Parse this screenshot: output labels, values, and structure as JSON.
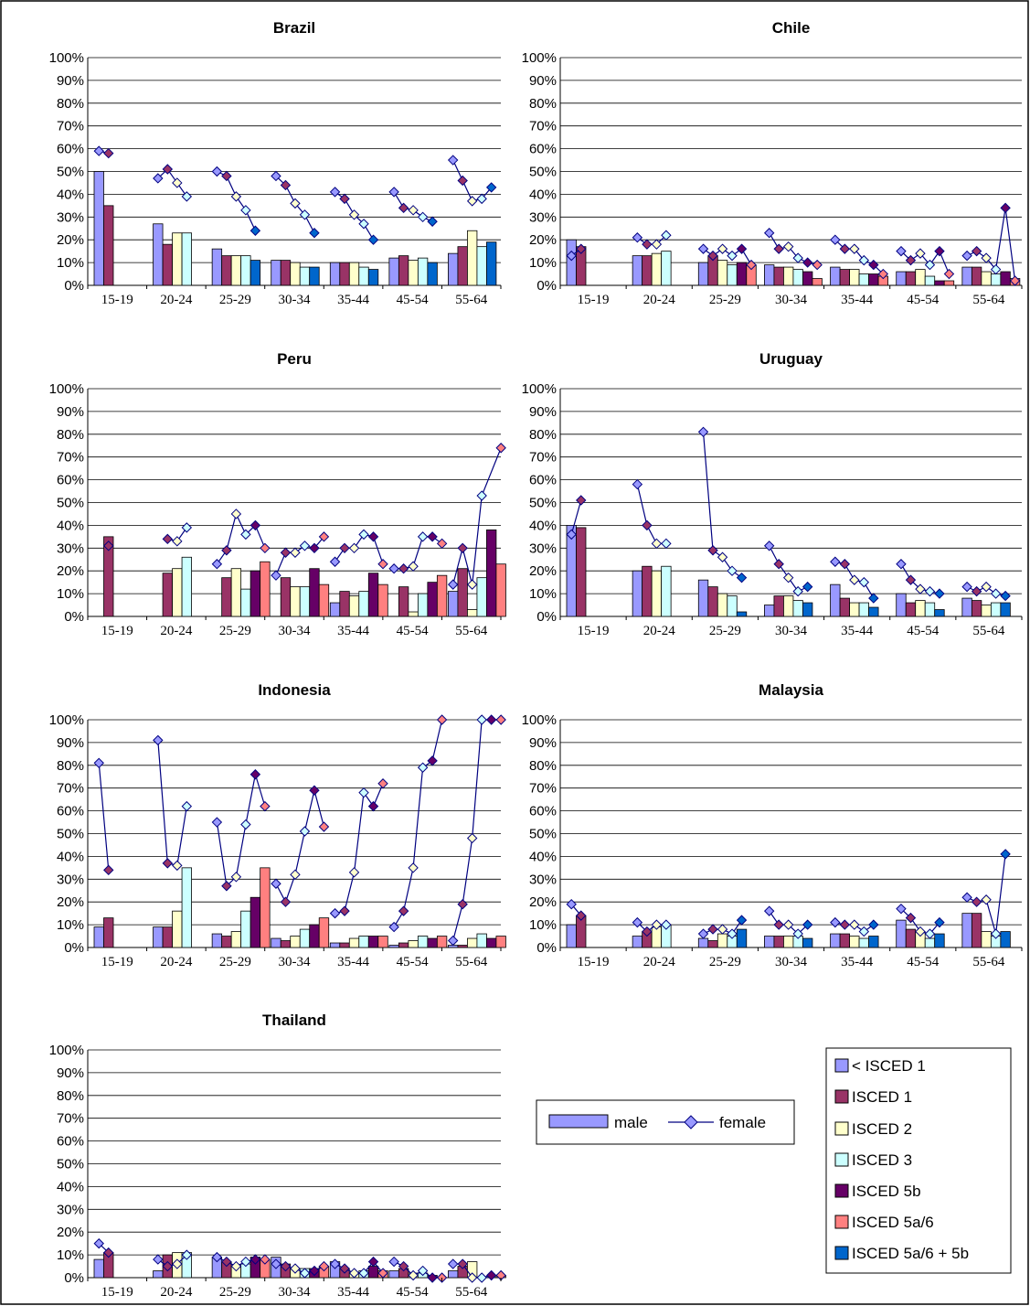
{
  "chart_data": {
    "type": "bar",
    "categories": [
      "15-19",
      "20-24",
      "25-29",
      "30-34",
      "35-44",
      "45-54",
      "55-64"
    ],
    "ylim": [
      0,
      100
    ],
    "yticks": [
      "0%",
      "10%",
      "20%",
      "30%",
      "40%",
      "50%",
      "60%",
      "70%",
      "80%",
      "90%",
      "100%"
    ],
    "grid": true,
    "marker_legend": {
      "male": "male",
      "female": "female"
    },
    "education_levels": [
      "< ISCED 1",
      "ISCED 1",
      "ISCED 2",
      "ISCED 3",
      "ISCED 5b",
      "ISCED 5a/6",
      "ISCED 5a/6 + 5b"
    ],
    "colors": {
      "< ISCED 1": "#9999ff",
      "ISCED 1": "#993366",
      "ISCED 2": "#ffffcc",
      "ISCED 3": "#ccffff",
      "ISCED 5b": "#660066",
      "ISCED 5a/6": "#ff8080",
      "ISCED 5a/6 + 5b": "#0066cc"
    },
    "panels": [
      {
        "title": "Brazil",
        "levels": [
          "< ISCED 1",
          "ISCED 1",
          "ISCED 2",
          "ISCED 3",
          "ISCED 5a/6 + 5b"
        ],
        "male": [
          [
            50,
            35
          ],
          [
            27,
            18,
            23,
            23
          ],
          [
            16,
            13,
            13,
            13,
            11
          ],
          [
            11,
            11,
            10,
            8,
            8
          ],
          [
            10,
            10,
            10,
            8,
            7
          ],
          [
            12,
            13,
            11,
            12,
            10
          ],
          [
            14,
            17,
            24,
            17,
            19
          ]
        ],
        "female": [
          [
            59,
            58
          ],
          [
            47,
            51,
            45,
            39
          ],
          [
            50,
            48,
            39,
            33,
            24
          ],
          [
            48,
            44,
            36,
            31,
            23
          ],
          [
            41,
            38,
            31,
            27,
            20
          ],
          [
            41,
            34,
            33,
            30,
            28
          ],
          [
            55,
            46,
            37,
            38,
            43
          ]
        ]
      },
      {
        "title": "Chile",
        "levels": [
          "< ISCED 1",
          "ISCED 1",
          "ISCED 2",
          "ISCED 3",
          "ISCED 5b",
          "ISCED 5a/6"
        ],
        "male": [
          [
            20,
            17
          ],
          [
            13,
            13,
            14,
            15
          ],
          [
            10,
            13,
            11,
            9,
            10,
            9
          ],
          [
            9,
            8,
            8,
            7,
            6,
            3
          ],
          [
            8,
            7,
            7,
            5,
            5,
            4
          ],
          [
            6,
            6,
            7,
            4,
            2,
            2
          ],
          [
            8,
            8,
            6,
            5,
            6,
            3
          ]
        ],
        "female": [
          [
            13,
            16
          ],
          [
            21,
            18,
            18,
            22
          ],
          [
            16,
            13,
            16,
            13,
            16,
            9
          ],
          [
            23,
            16,
            17,
            12,
            10,
            9
          ],
          [
            20,
            16,
            16,
            11,
            9,
            5
          ],
          [
            15,
            11,
            14,
            9,
            15,
            5
          ],
          [
            13,
            15,
            12,
            7,
            34,
            2
          ]
        ]
      },
      {
        "title": "Peru",
        "levels": [
          "< ISCED 1",
          "ISCED 1",
          "ISCED 2",
          "ISCED 3",
          "ISCED 5b",
          "ISCED 5a/6"
        ],
        "male": [
          [
            null,
            35
          ],
          [
            null,
            19,
            21,
            26
          ],
          [
            null,
            17,
            21,
            12,
            20,
            24
          ],
          [
            null,
            17,
            13,
            13,
            21,
            14
          ],
          [
            6,
            11,
            9,
            11,
            19,
            14
          ],
          [
            null,
            13,
            2,
            10,
            15,
            18
          ],
          [
            11,
            21,
            3,
            17,
            38,
            23
          ]
        ],
        "female": [
          [
            null,
            31
          ],
          [
            null,
            34,
            33,
            39
          ],
          [
            23,
            29,
            45,
            36,
            40,
            30
          ],
          [
            18,
            28,
            28,
            31,
            30,
            35
          ],
          [
            24,
            30,
            30,
            36,
            35,
            23
          ],
          [
            21,
            21,
            22,
            35,
            35,
            32
          ],
          [
            14,
            30,
            14,
            53,
            null,
            74
          ]
        ]
      },
      {
        "title": "Uruguay",
        "levels": [
          "< ISCED 1",
          "ISCED 1",
          "ISCED 2",
          "ISCED 3",
          "ISCED 5a/6 + 5b"
        ],
        "male": [
          [
            40,
            39
          ],
          [
            20,
            22,
            20,
            22
          ],
          [
            16,
            13,
            10,
            9,
            2
          ],
          [
            5,
            9,
            9,
            7,
            6
          ],
          [
            14,
            8,
            6,
            6,
            4
          ],
          [
            10,
            6,
            7,
            6,
            3
          ],
          [
            8,
            7,
            5,
            6,
            6
          ]
        ],
        "female": [
          [
            36,
            51
          ],
          [
            58,
            40,
            32,
            32
          ],
          [
            81,
            29,
            26,
            20,
            17
          ],
          [
            31,
            23,
            17,
            11,
            13
          ],
          [
            24,
            23,
            16,
            15,
            8
          ],
          [
            23,
            16,
            12,
            11,
            10
          ],
          [
            13,
            11,
            13,
            10,
            9
          ]
        ]
      },
      {
        "title": "Indonesia",
        "levels": [
          "< ISCED 1",
          "ISCED 1",
          "ISCED 2",
          "ISCED 3",
          "ISCED 5b",
          "ISCED 5a/6"
        ],
        "male": [
          [
            9,
            13
          ],
          [
            9,
            9,
            16,
            35
          ],
          [
            6,
            5,
            7,
            16,
            22,
            35
          ],
          [
            4,
            3,
            5,
            8,
            10,
            13
          ],
          [
            2,
            2,
            4,
            5,
            5,
            5
          ],
          [
            1,
            2,
            3,
            5,
            4,
            5
          ],
          [
            1,
            1,
            4,
            6,
            4,
            5
          ]
        ],
        "female": [
          [
            81,
            34
          ],
          [
            91,
            37,
            36,
            62
          ],
          [
            55,
            27,
            31,
            54,
            76,
            62
          ],
          [
            28,
            20,
            32,
            51,
            69,
            53
          ],
          [
            15,
            16,
            33,
            68,
            62,
            72
          ],
          [
            9,
            16,
            35,
            79,
            82,
            100
          ],
          [
            3,
            19,
            48,
            100,
            100,
            100
          ]
        ]
      },
      {
        "title": "Malaysia",
        "levels": [
          "< ISCED 1",
          "ISCED 1",
          "ISCED 2",
          "ISCED 3",
          "ISCED 5a/6 + 5b"
        ],
        "male": [
          [
            10,
            14
          ],
          [
            5,
            7,
            9,
            10
          ],
          [
            4,
            3,
            6,
            5,
            8
          ],
          [
            5,
            5,
            5,
            5,
            4
          ],
          [
            6,
            6,
            5,
            4,
            5
          ],
          [
            12,
            8,
            7,
            4,
            6
          ],
          [
            15,
            15,
            7,
            5,
            7
          ]
        ],
        "female": [
          [
            19,
            14
          ],
          [
            11,
            7,
            10,
            10
          ],
          [
            6,
            8,
            8,
            6,
            12
          ],
          [
            16,
            10,
            10,
            6,
            10
          ],
          [
            11,
            10,
            10,
            7,
            10
          ],
          [
            17,
            13,
            7,
            6,
            11
          ],
          [
            22,
            20,
            21,
            6,
            41
          ]
        ]
      },
      {
        "title": "Thailand",
        "levels": [
          "< ISCED 1",
          "ISCED 1",
          "ISCED 2",
          "ISCED 3",
          "ISCED 5b",
          "ISCED 5a/6"
        ],
        "male": [
          [
            8,
            11
          ],
          [
            3,
            10,
            11,
            11
          ],
          [
            9,
            7,
            5,
            6,
            9,
            8
          ],
          [
            9,
            6,
            4,
            4,
            4,
            5
          ],
          [
            7,
            4,
            2,
            3,
            5,
            3
          ],
          [
            3,
            4,
            2,
            2,
            1,
            0
          ],
          [
            3,
            5,
            7,
            0,
            0,
            1
          ]
        ],
        "female": [
          [
            15,
            11
          ],
          [
            8,
            5,
            6,
            10
          ],
          [
            9,
            7,
            5,
            7,
            8,
            8
          ],
          [
            6,
            5,
            4,
            2,
            3,
            5
          ],
          [
            6,
            4,
            2,
            2,
            7,
            2
          ],
          [
            7,
            5,
            1,
            3,
            0,
            0
          ],
          [
            6,
            6,
            0,
            0,
            1,
            1
          ]
        ]
      }
    ]
  }
}
